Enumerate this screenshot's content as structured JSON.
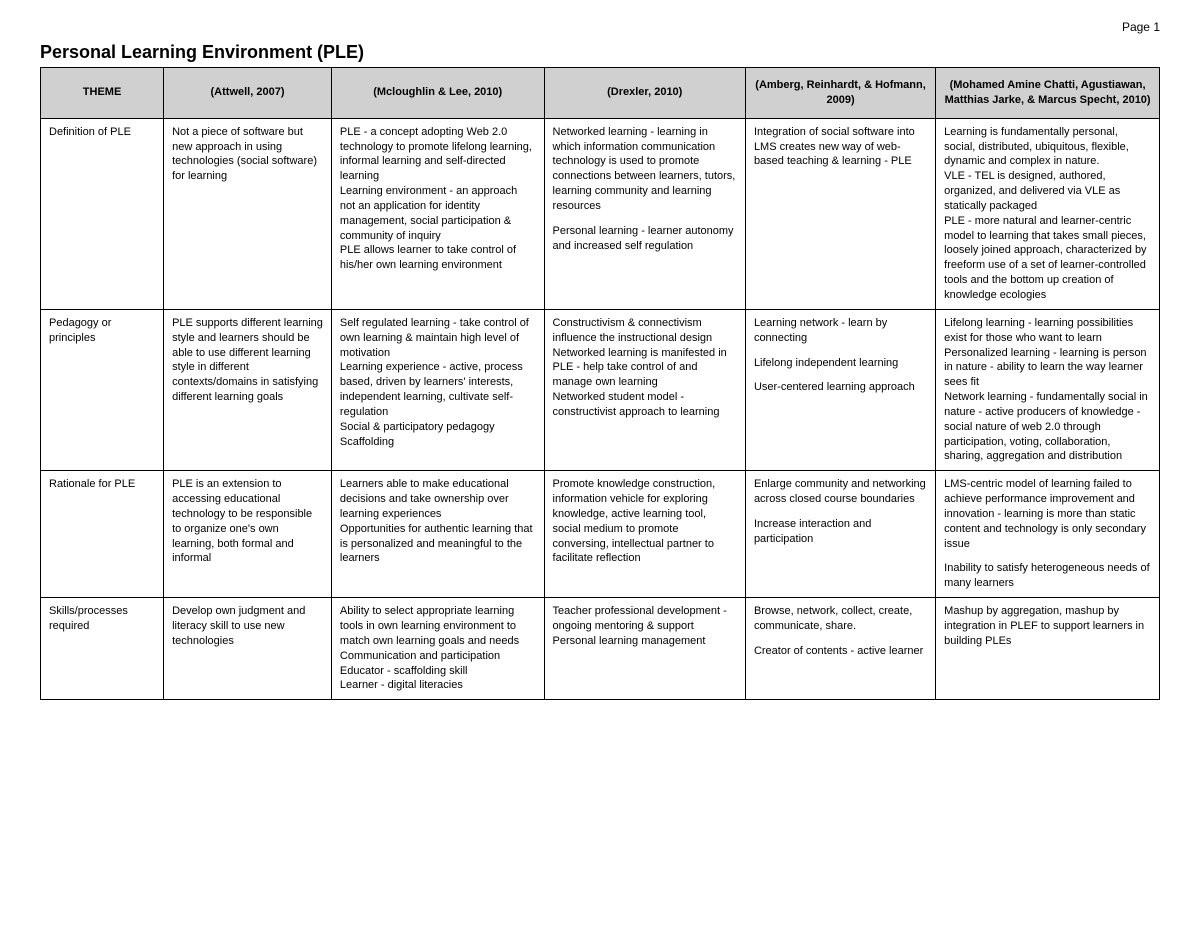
{
  "page_label": "Page 1",
  "title": "Personal Learning Environment (PLE)",
  "table": {
    "columns": [
      "THEME",
      "(Attwell, 2007)",
      "(Mcloughlin & Lee, 2010)",
      "(Drexler, 2010)",
      "(Amberg, Reinhardt, & Hofmann, 2009)",
      "(Mohamed Amine Chatti, Agustiawan, Matthias Jarke, & Marcus Specht, 2010)"
    ],
    "column_widths_pct": [
      11,
      15,
      19,
      18,
      17,
      20
    ],
    "header_bg": "#d0d0d0",
    "border_color": "#000000",
    "font_size_pt": 11,
    "rows": [
      {
        "theme": "Definition of PLE",
        "cells": [
          [
            "Not a piece of software but new approach in using technologies (social software) for learning"
          ],
          [
            "PLE - a concept adopting Web 2.0 technology to promote lifelong learning, informal learning and self-directed learning\nLearning environment - an approach not an application for identity management, social participation & community of inquiry\nPLE allows learner to take control of his/her own learning environment"
          ],
          [
            "Networked learning - learning in which information communication technology is used to promote connections between learners, tutors, learning community and learning resources",
            "Personal learning - learner autonomy and increased self regulation"
          ],
          [
            "Integration of social software into LMS creates new way of web-based teaching & learning - PLE"
          ],
          [
            "Learning is fundamentally personal, social, distributed, ubiquitous, flexible, dynamic and complex in nature.\nVLE - TEL is designed, authored, organized, and delivered via VLE as statically packaged\nPLE - more natural and learner-centric model to learning that takes small pieces, loosely joined approach, characterized by freeform use of a set of learner-controlled tools and the bottom up creation of knowledge ecologies"
          ]
        ]
      },
      {
        "theme": "Pedagogy or principles",
        "cells": [
          [
            "PLE supports different learning style and learners should be able to use different learning style in different contexts/domains in satisfying different learning goals"
          ],
          [
            "Self regulated learning - take control of own learning & maintain high level of motivation\nLearning experience - active, process based, driven by learners' interests, independent learning, cultivate self-regulation\nSocial & participatory pedagogy\nScaffolding"
          ],
          [
            "Constructivism & connectivism influence the instructional design\nNetworked learning is manifested in PLE - help take control of and manage own learning\nNetworked student model - constructivist approach to learning"
          ],
          [
            "Learning network - learn by connecting",
            "Lifelong independent learning",
            "User-centered learning approach"
          ],
          [
            "Lifelong learning - learning possibilities exist for those who want to learn\nPersonalized learning - learning is person in nature - ability to learn the way learner sees fit\nNetwork learning - fundamentally social in nature - active producers of knowledge - social nature of web 2.0 through participation, voting, collaboration, sharing, aggregation and distribution"
          ]
        ]
      },
      {
        "theme": "Rationale for PLE",
        "cells": [
          [
            "PLE is an extension to accessing educational technology to be responsible to organize one's own learning, both formal and informal"
          ],
          [
            "Learners able to make educational decisions and take ownership over learning experiences\nOpportunities for authentic learning that is personalized and meaningful to the learners"
          ],
          [
            "Promote knowledge construction, information vehicle for exploring knowledge, active learning tool, social medium to promote conversing, intellectual partner to facilitate reflection"
          ],
          [
            "Enlarge community and networking across closed course boundaries",
            "Increase interaction and participation"
          ],
          [
            "LMS-centric model of learning failed to achieve performance improvement and innovation - learning is more than static content and technology is only secondary issue",
            "Inability to satisfy heterogeneous needs of many learners"
          ]
        ]
      },
      {
        "theme": "Skills/processes required",
        "cells": [
          [
            "Develop own judgment and literacy skill to use new technologies"
          ],
          [
            "Ability to select appropriate learning tools in own learning environment to match own learning goals and needs\nCommunication and participation\nEducator - scaffolding skill\nLearner - digital literacies"
          ],
          [
            "Teacher professional development -ongoing mentoring & support\nPersonal learning management"
          ],
          [
            "Browse, network, collect, create, communicate, share.",
            "Creator of contents - active learner"
          ],
          [
            "Mashup by aggregation, mashup by integration in PLEF to support learners in building PLEs"
          ]
        ]
      }
    ]
  }
}
